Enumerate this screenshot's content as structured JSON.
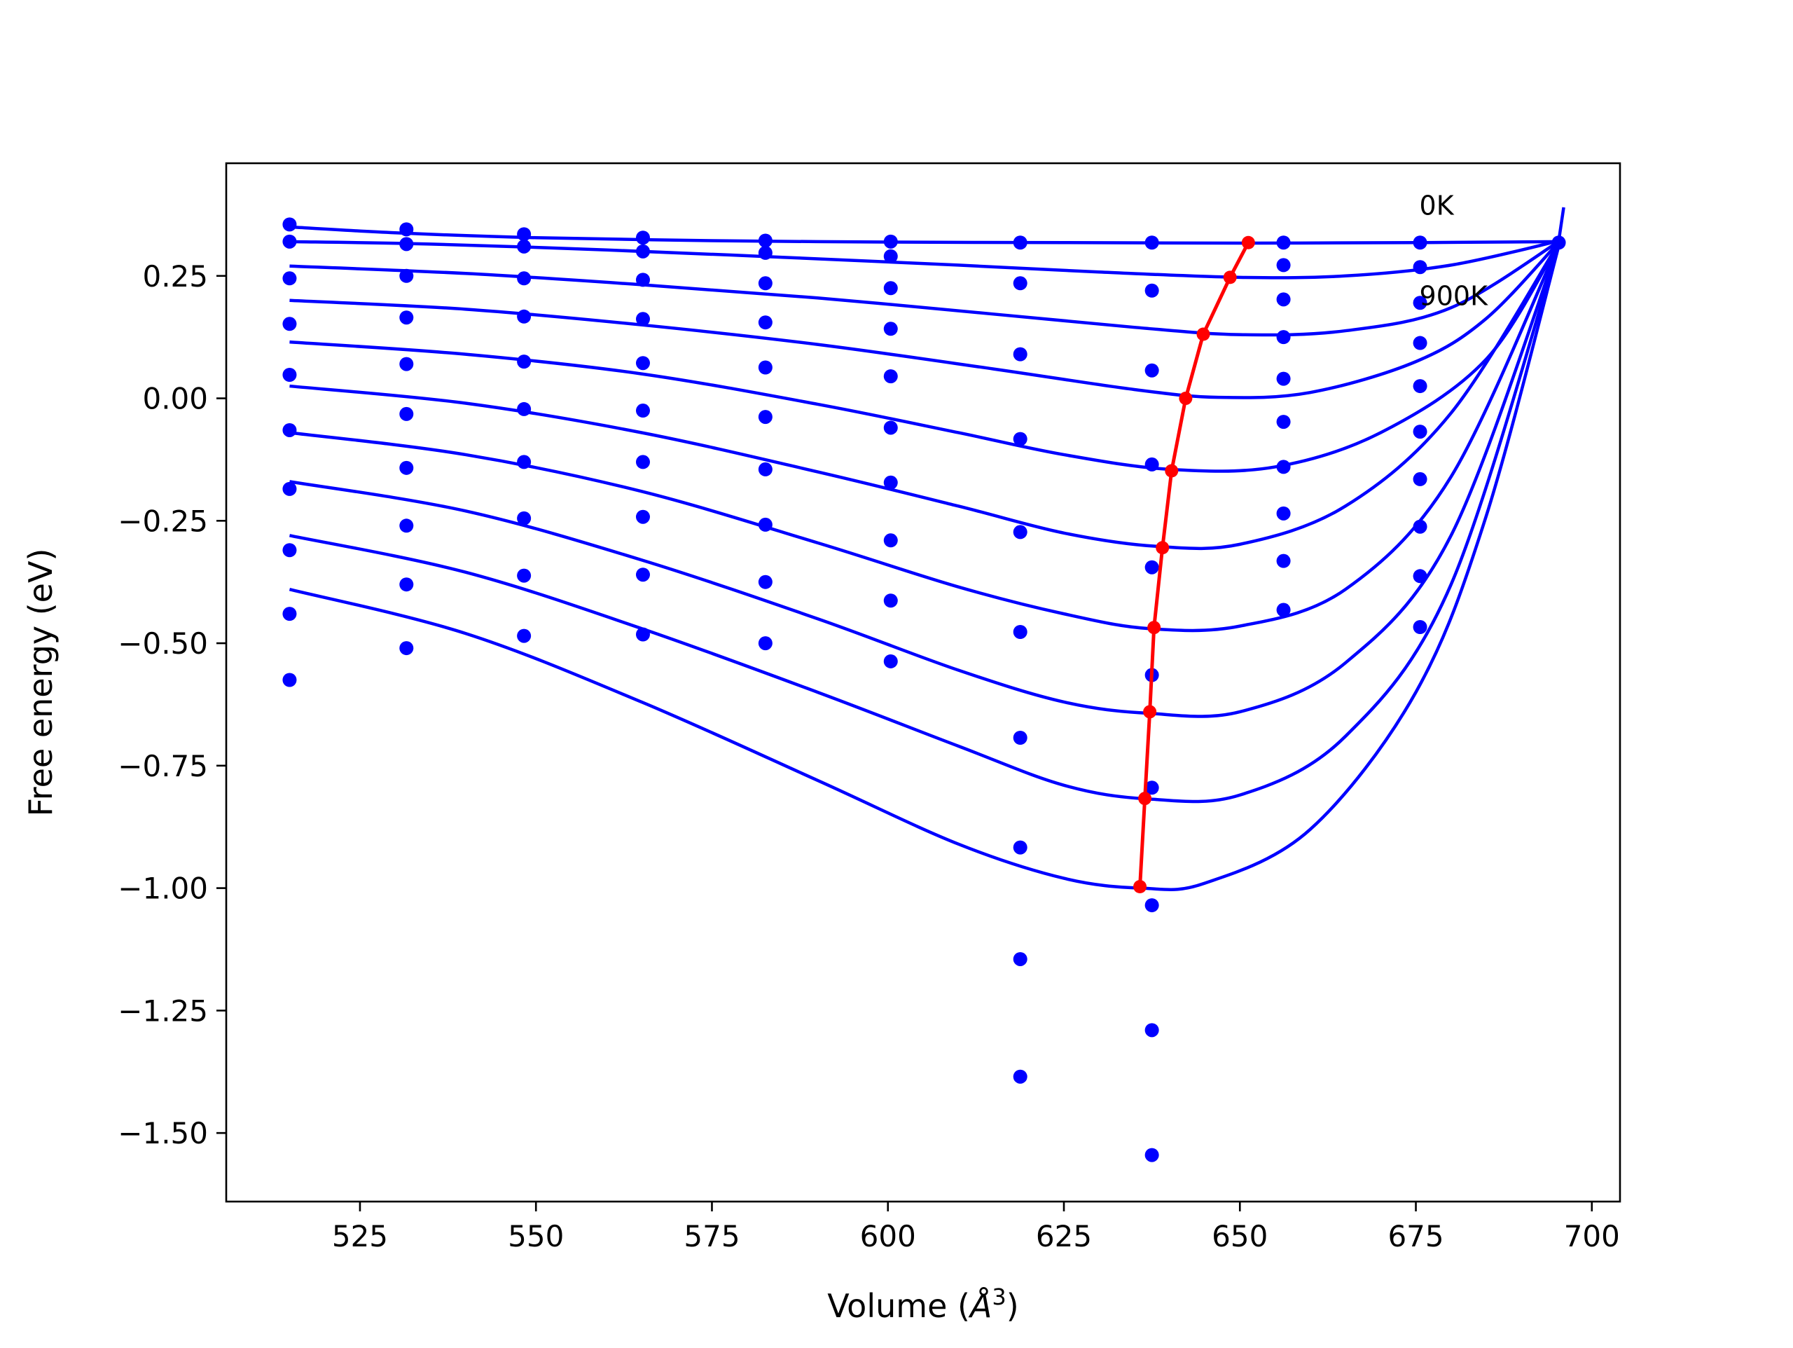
{
  "chart_data": {
    "type": "line",
    "title": "",
    "xlabel_prefix": "Volume (",
    "xlabel_unit": "Å",
    "xlabel_exp": "3",
    "xlabel_suffix": ")",
    "ylabel": "Free energy (eV)",
    "xlim": [
      506,
      704
    ],
    "ylim": [
      -1.64,
      0.48
    ],
    "xticks": [
      525,
      550,
      575,
      600,
      625,
      650,
      675,
      700
    ],
    "xtick_labels": [
      "525",
      "550",
      "575",
      "600",
      "625",
      "650",
      "675",
      "700"
    ],
    "yticks": [
      0.25,
      0.0,
      -0.25,
      -0.5,
      -0.75,
      -1.0,
      -1.25,
      -1.5
    ],
    "ytick_labels": [
      "0.25",
      "0.00",
      "−0.25",
      "−0.50",
      "−0.75",
      "−1.00",
      "−1.25",
      "−1.50"
    ],
    "grid": false,
    "colors": {
      "fit": "#0000ff",
      "points": "#0000ff",
      "minima": "#ff0000"
    },
    "annotations": [
      {
        "text": "0K",
        "x": 675.5,
        "y": 0.375
      },
      {
        "text": "900K",
        "x": 675.5,
        "y": 0.19
      }
    ],
    "volumes": [
      515,
      531.6,
      548.3,
      565.2,
      582.6,
      600.4,
      618.8,
      637.5,
      656.2,
      675.6,
      695.3
    ],
    "point_series": [
      {
        "x_index": 0,
        "y": [
          0.355,
          0.32,
          0.245,
          0.152,
          0.048,
          -0.065,
          -0.185,
          -0.31,
          -0.44,
          -0.575
        ]
      },
      {
        "x_index": 1,
        "y": [
          0.345,
          0.315,
          0.25,
          0.165,
          0.07,
          -0.032,
          -0.142,
          -0.26,
          -0.38,
          -0.51
        ]
      },
      {
        "x_index": 2,
        "y": [
          0.335,
          0.31,
          0.245,
          0.167,
          0.075,
          -0.022,
          -0.13,
          -0.245,
          -0.362,
          -0.485
        ]
      },
      {
        "x_index": 3,
        "y": [
          0.328,
          0.3,
          0.242,
          0.162,
          0.072,
          -0.025,
          -0.13,
          -0.242,
          -0.36,
          -0.482
        ]
      },
      {
        "x_index": 4,
        "y": [
          0.322,
          0.297,
          0.235,
          0.155,
          0.063,
          -0.038,
          -0.145,
          -0.258,
          -0.375,
          -0.5
        ]
      },
      {
        "x_index": 5,
        "y": [
          0.32,
          0.29,
          0.225,
          0.142,
          0.045,
          -0.06,
          -0.172,
          -0.29,
          -0.413,
          -0.537
        ]
      },
      {
        "x_index": 6,
        "y": [
          0.318,
          0.235,
          0.09,
          -0.083,
          -0.273,
          -0.477,
          -0.693,
          -0.917,
          -1.145,
          -1.385
        ]
      },
      {
        "x_index": 7,
        "y": [
          0.318,
          0.22,
          0.057,
          -0.135,
          -0.345,
          -0.565,
          -0.795,
          -1.035,
          -1.29,
          -1.545
        ]
      },
      {
        "x_index": 8,
        "y": [
          0.318,
          0.272,
          0.202,
          0.125,
          0.04,
          -0.048,
          -0.14,
          -0.235,
          -0.332,
          -0.432
        ]
      },
      {
        "x_index": 9,
        "y": [
          0.318,
          0.268,
          0.195,
          0.113,
          0.025,
          -0.068,
          -0.165,
          -0.262,
          -0.363,
          -0.467
        ]
      },
      {
        "x_index": 10,
        "y": [
          0.318
        ]
      }
    ],
    "fit_curves": [
      {
        "x": [
          515,
          530,
          550,
          575,
          600,
          625,
          650,
          675,
          695.5
        ],
        "y": [
          0.35,
          0.338,
          0.328,
          0.322,
          0.319,
          0.318,
          0.317,
          0.318,
          0.32
        ]
      },
      {
        "x": [
          515,
          535,
          560,
          585,
          610,
          630,
          650,
          665,
          680,
          695.5
        ],
        "y": [
          0.32,
          0.315,
          0.303,
          0.288,
          0.272,
          0.258,
          0.247,
          0.25,
          0.272,
          0.322
        ]
      },
      {
        "x": [
          515,
          540,
          565,
          590,
          615,
          635,
          650,
          665,
          680,
          695.5
        ],
        "y": [
          0.27,
          0.255,
          0.232,
          0.205,
          0.172,
          0.145,
          0.13,
          0.138,
          0.185,
          0.322
        ]
      },
      {
        "x": [
          515,
          540,
          565,
          590,
          615,
          635,
          647,
          660,
          675,
          685,
          695.5
        ],
        "y": [
          0.2,
          0.182,
          0.15,
          0.11,
          0.06,
          0.018,
          0.002,
          0.012,
          0.075,
          0.163,
          0.322
        ]
      },
      {
        "x": [
          515,
          540,
          565,
          590,
          610,
          625,
          640,
          655,
          670,
          685,
          695.5
        ],
        "y": [
          0.115,
          0.09,
          0.05,
          -0.012,
          -0.07,
          -0.115,
          -0.145,
          -0.14,
          -0.07,
          0.08,
          0.322
        ]
      },
      {
        "x": [
          515,
          540,
          565,
          590,
          610,
          625,
          638,
          650,
          665,
          680,
          695.5
        ],
        "y": [
          0.025,
          -0.01,
          -0.07,
          -0.15,
          -0.22,
          -0.275,
          -0.302,
          -0.298,
          -0.22,
          -0.03,
          0.322
        ]
      },
      {
        "x": [
          515,
          540,
          565,
          590,
          610,
          625,
          637,
          650,
          665,
          680,
          695.5
        ],
        "y": [
          -0.07,
          -0.115,
          -0.19,
          -0.295,
          -0.385,
          -0.44,
          -0.47,
          -0.465,
          -0.39,
          -0.16,
          0.322
        ]
      },
      {
        "x": [
          515,
          540,
          565,
          590,
          610,
          625,
          637,
          650,
          665,
          680,
          695.5
        ],
        "y": [
          -0.17,
          -0.23,
          -0.33,
          -0.45,
          -0.555,
          -0.62,
          -0.643,
          -0.64,
          -0.54,
          -0.28,
          0.322
        ]
      },
      {
        "x": [
          515,
          540,
          565,
          590,
          610,
          625,
          637,
          650,
          665,
          680,
          695.5
        ],
        "y": [
          -0.28,
          -0.355,
          -0.47,
          -0.6,
          -0.71,
          -0.79,
          -0.818,
          -0.81,
          -0.69,
          -0.38,
          0.322
        ]
      },
      {
        "x": [
          515,
          540,
          565,
          590,
          610,
          625,
          636,
          645,
          660,
          675,
          685,
          695.5
        ],
        "y": [
          -0.39,
          -0.48,
          -0.62,
          -0.78,
          -0.91,
          -0.98,
          -1.0,
          -0.99,
          -0.88,
          -0.6,
          -0.24,
          0.322
        ]
      }
    ],
    "minima_series": {
      "x": [
        651.2,
        648.6,
        644.8,
        642.3,
        640.3,
        639.0,
        637.8,
        637.2,
        636.5,
        635.8
      ],
      "y": [
        0.318,
        0.247,
        0.131,
        0.0,
        -0.148,
        -0.305,
        -0.468,
        -0.64,
        -0.817,
        -0.997
      ]
    },
    "fit_tail": {
      "x": [
        695.3,
        696.0
      ],
      "y": [
        0.322,
        0.39
      ]
    }
  }
}
